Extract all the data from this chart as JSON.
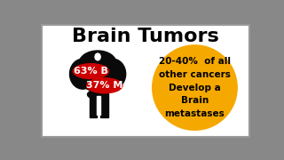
{
  "title": "Brain Tumors",
  "title_fontsize": 16,
  "title_fontweight": "bold",
  "bg_color": "#ffffff",
  "border_color": "#999999",
  "oval1_color": "#cc0000",
  "oval2_color": "#cc0000",
  "oval1_text": "63% B",
  "oval2_text": "37% M",
  "oval_text_color": "#ffffff",
  "oval_text_fontsize": 8,
  "oval_text_fontweight": "bold",
  "circle_color": "#f5a800",
  "circle_text": "20-40%  of all\nother cancers\nDevelop a\nBrain\nmetastases",
  "circle_text_color": "#000000",
  "circle_text_fontsize": 7.5,
  "circle_text_fontweight": "bold",
  "brain_color": "#0a0a0a",
  "frame_color": "#888888"
}
